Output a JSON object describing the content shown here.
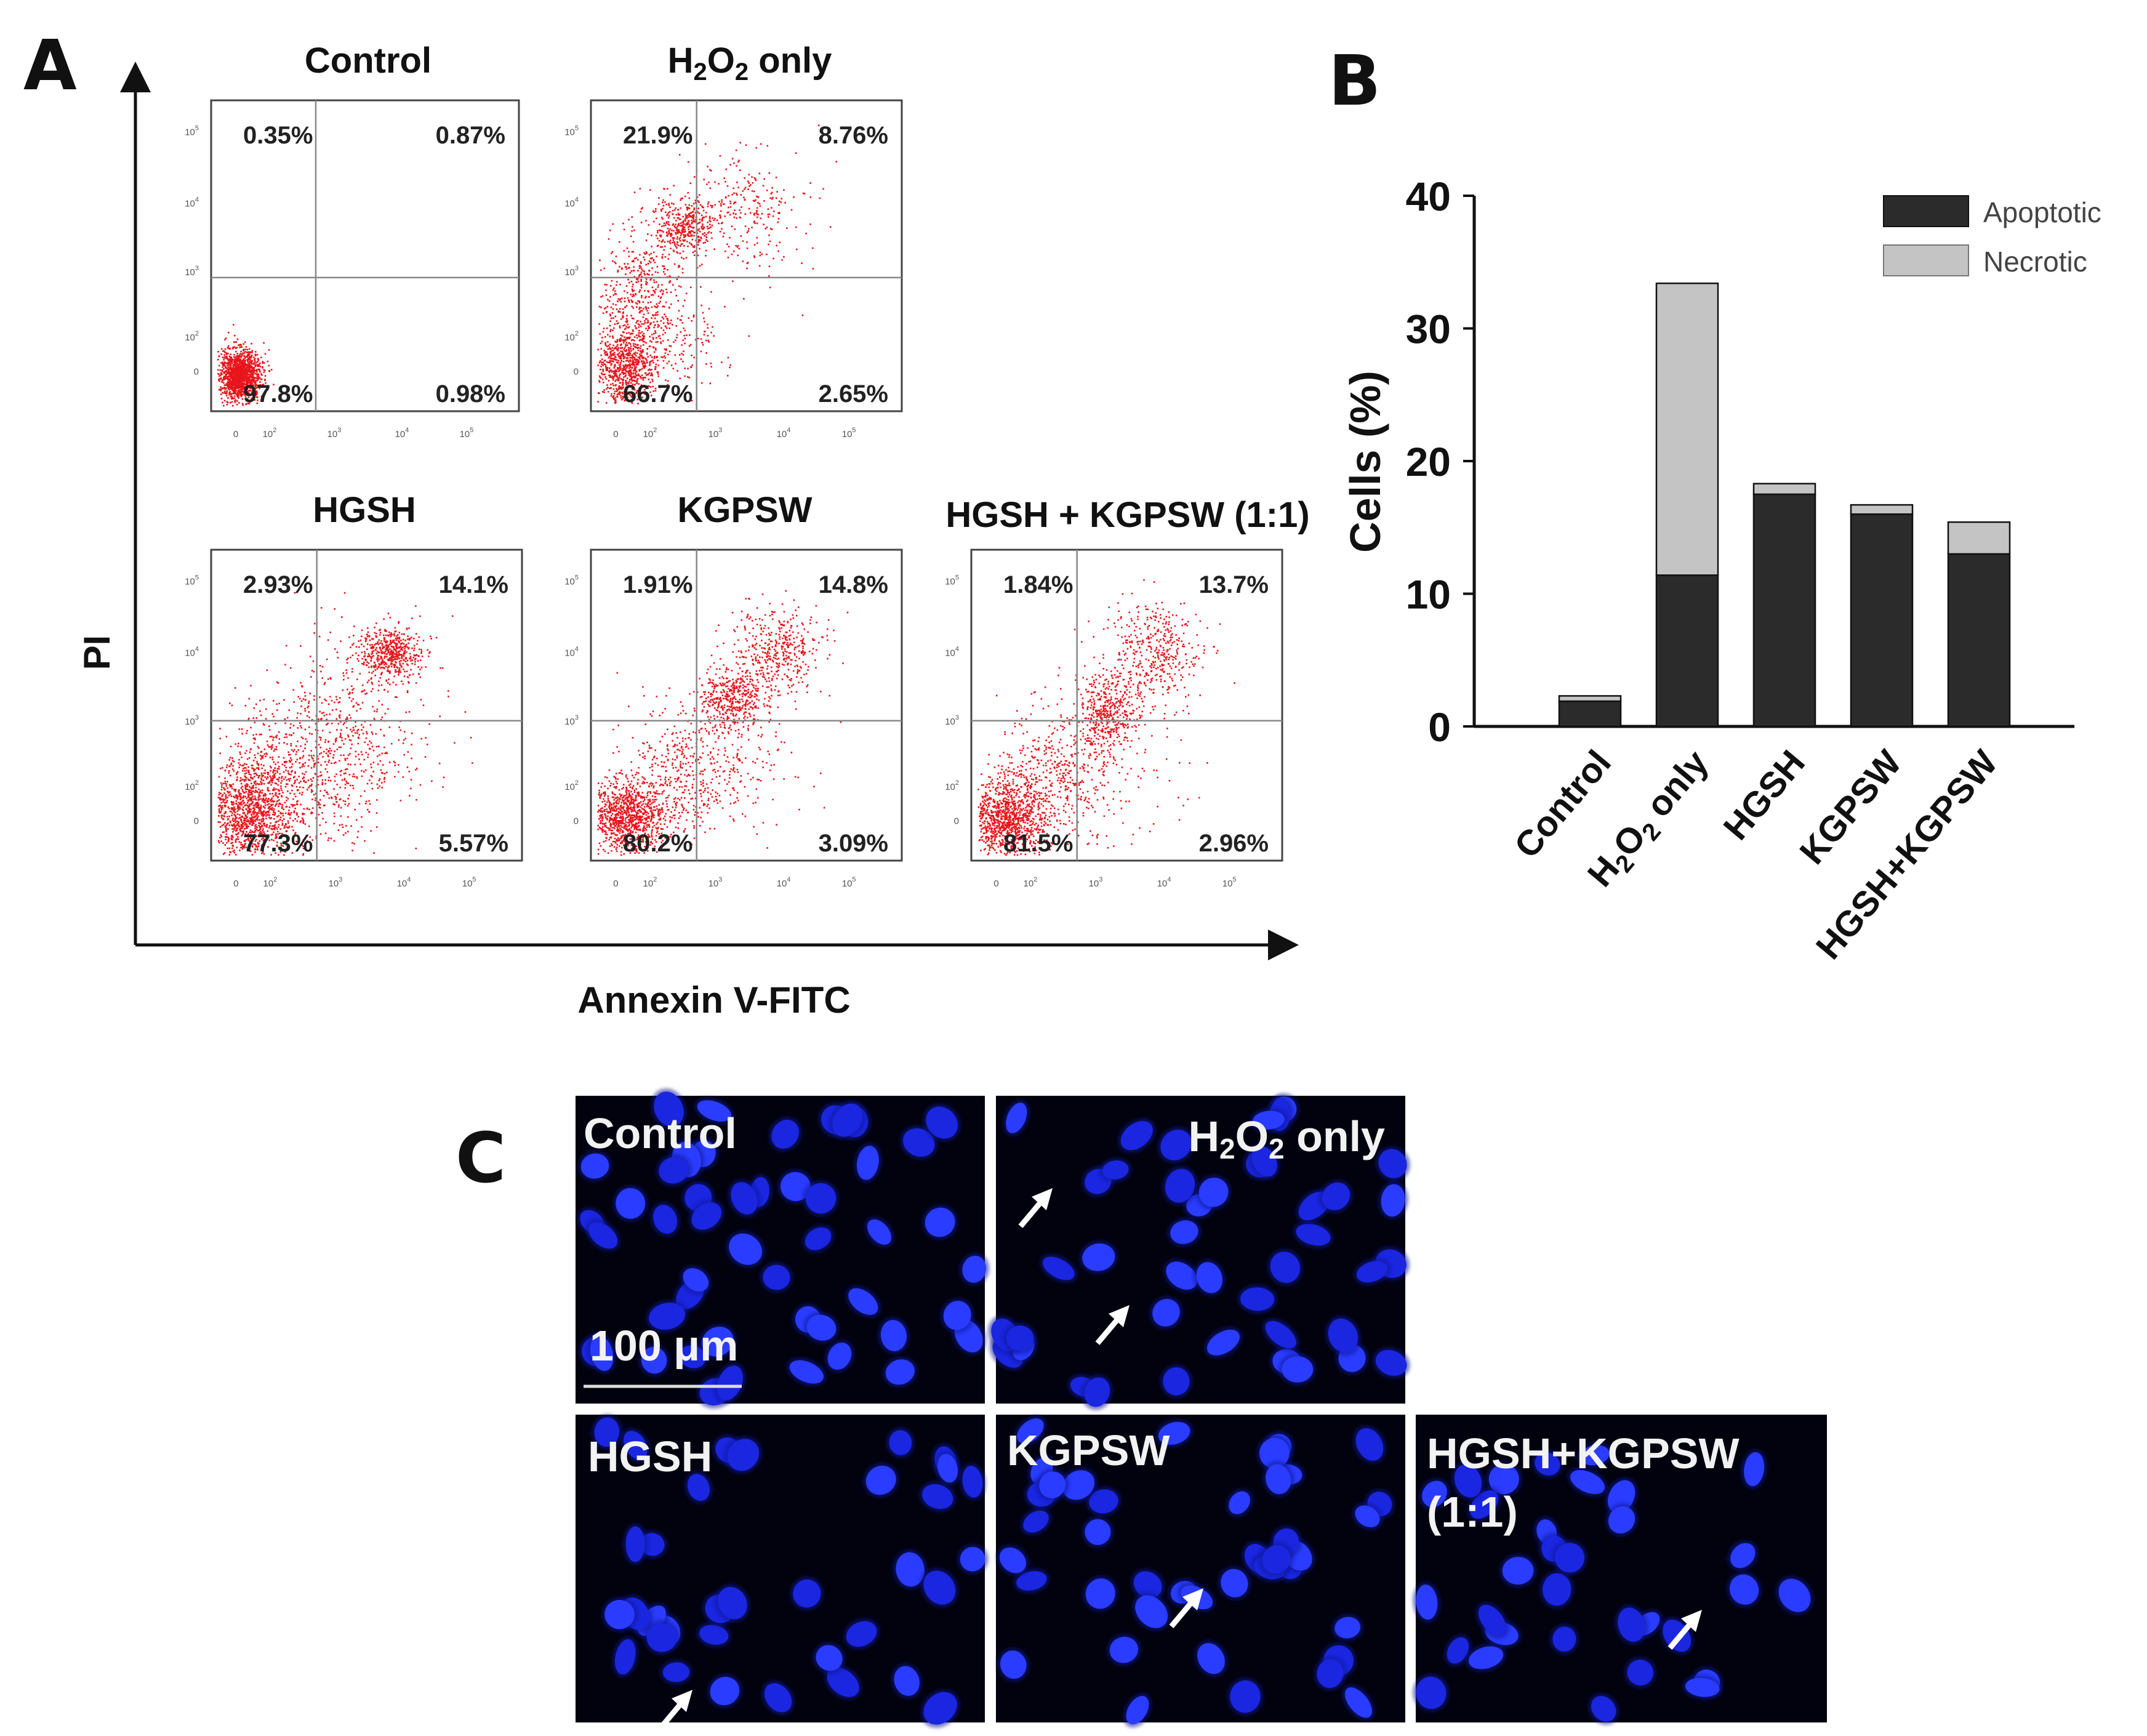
{
  "panels": {
    "a": "A",
    "b": "B",
    "c": "C"
  },
  "flow": {
    "x_label": "Annexin V-FITC",
    "y_label": "PI",
    "x_ticks": [
      "0",
      "10",
      "10",
      "10",
      "10"
    ],
    "x_tick_exps": [
      "",
      "2",
      "3",
      "4",
      "5"
    ],
    "y_ticks": [
      "0",
      "10",
      "10",
      "10",
      "10"
    ],
    "y_tick_exps": [
      "",
      "2",
      "3",
      "4",
      "5"
    ],
    "plots": [
      {
        "title": "Control",
        "title_parts": {
          "t1": "Control",
          "t2": "",
          "t3": "",
          "t4": ""
        },
        "ul": "0.35%",
        "ur": "0.87%",
        "ll": "97.8%",
        "lr": "0.98%"
      },
      {
        "title": "H2O2 only",
        "title_parts": {
          "t1": "H",
          "t2": "2",
          "t3": "O",
          "t4": "2",
          "t5": " only"
        },
        "ul": "21.9%",
        "ur": "8.76%",
        "ll": "66.7%",
        "lr": "2.65%"
      },
      {
        "title": "HGSH",
        "title_parts": {
          "t1": "HGSH"
        },
        "ul": "2.93%",
        "ur": "14.1%",
        "ll": "77.3%",
        "lr": "5.57%"
      },
      {
        "title": "KGPSW",
        "title_parts": {
          "t1": "KGPSW"
        },
        "ul": "1.91%",
        "ur": "14.8%",
        "ll": "80.2%",
        "lr": "3.09%"
      },
      {
        "title": "HGSH + KGPSW (1:1)",
        "title_parts": {
          "t1": "HGSH + KGPSW (1:1)"
        },
        "ul": "1.84%",
        "ur": "13.7%",
        "ll": "81.5%",
        "lr": "2.96%"
      }
    ]
  },
  "chart_data": {
    "type": "bar",
    "stacked": true,
    "title": "",
    "xlabel": "",
    "ylabel": "Cells (%)",
    "ylim": [
      0,
      40
    ],
    "yticks": [
      0,
      10,
      20,
      30,
      40
    ],
    "categories": [
      "Control",
      "H2O2 only",
      "HGSH",
      "KGPSW",
      "HGSH+KGPSW"
    ],
    "category_parts": {
      "h2o2": {
        "a": "H",
        "b": "2",
        "c": "O",
        "d": "2",
        "e": " only"
      }
    },
    "series": [
      {
        "name": "Apoptotic",
        "color": "#2b2b2b",
        "values": [
          1.9,
          11.4,
          17.5,
          16.0,
          13.0
        ]
      },
      {
        "name": "Necrotic",
        "color": "#c4c4c4",
        "values": [
          0.4,
          22.0,
          0.8,
          0.7,
          2.4
        ]
      }
    ],
    "legend": "top-right"
  },
  "microscopy": {
    "scale_bar": "100 μm",
    "images": [
      {
        "label": "Control",
        "label2": ""
      },
      {
        "label": "H2O2 only",
        "parts": {
          "a": "H",
          "b": "2",
          "c": "O",
          "d": "2",
          "e": " only"
        }
      },
      {
        "label": "HGSH",
        "label2": ""
      },
      {
        "label": "KGPSW",
        "label2": ""
      },
      {
        "label": "HGSH+KGPSW",
        "label2": "(1:1)"
      }
    ]
  },
  "colors": {
    "dots": "#e8141b",
    "nuclei": "#1a2bff",
    "micro_bg": "#02020e",
    "bar_apoptotic": "#2b2b2b",
    "bar_necrotic": "#c4c4c4"
  }
}
